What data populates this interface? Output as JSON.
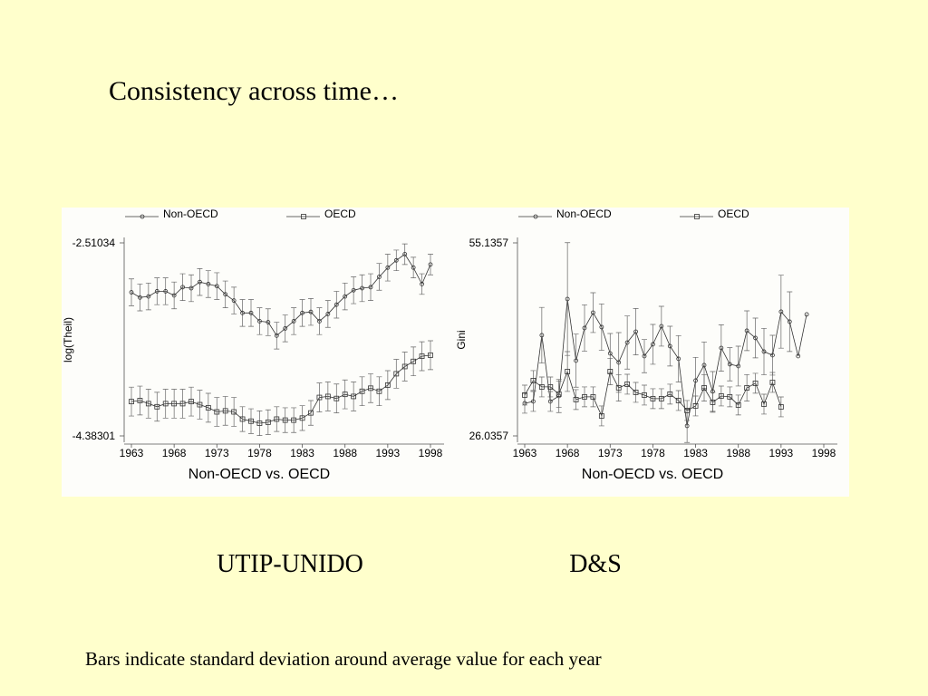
{
  "slide": {
    "title": "Consistency across time…",
    "labels": [
      "UTIP-UNIDO",
      "D&S"
    ],
    "footnote": "Bars indicate standard deviation around average value for each year"
  },
  "chart_data": [
    {
      "type": "line",
      "ylabel": "log(Theil)",
      "xlabel": "Non-OECD vs. OECD",
      "x": [
        1963,
        1964,
        1965,
        1966,
        1967,
        1968,
        1969,
        1970,
        1971,
        1972,
        1973,
        1974,
        1975,
        1976,
        1977,
        1978,
        1979,
        1980,
        1981,
        1982,
        1983,
        1984,
        1985,
        1986,
        1987,
        1988,
        1989,
        1990,
        1991,
        1992,
        1993,
        1994,
        1995,
        1996,
        1997,
        1998
      ],
      "xlim": [
        1963,
        1998
      ],
      "xticks": [
        1963,
        1968,
        1973,
        1978,
        1983,
        1988,
        1993,
        1998
      ],
      "ylim": [
        -4.38301,
        -2.51034
      ],
      "yticks": [
        -4.38301,
        -2.51034
      ],
      "series": [
        {
          "name": "Non-OECD",
          "marker": "circle",
          "color": "#333333",
          "values": [
            -2.99,
            -3.04,
            -3.03,
            -2.98,
            -2.98,
            -3.02,
            -2.94,
            -2.95,
            -2.89,
            -2.91,
            -2.93,
            -3.01,
            -3.07,
            -3.19,
            -3.19,
            -3.27,
            -3.28,
            -3.41,
            -3.34,
            -3.27,
            -3.19,
            -3.18,
            -3.27,
            -3.2,
            -3.11,
            -3.03,
            -2.97,
            -2.95,
            -2.94,
            -2.84,
            -2.75,
            -2.68,
            -2.62,
            -2.75,
            -2.91,
            -2.72
          ],
          "errors": [
            0.13,
            0.13,
            0.13,
            0.13,
            0.13,
            0.13,
            0.13,
            0.13,
            0.13,
            0.13,
            0.13,
            0.13,
            0.13,
            0.13,
            0.13,
            0.13,
            0.13,
            0.13,
            0.13,
            0.13,
            0.13,
            0.13,
            0.13,
            0.13,
            0.13,
            0.13,
            0.13,
            0.13,
            0.13,
            0.13,
            0.13,
            0.1,
            0.1,
            0.1,
            0.1,
            0.1
          ]
        },
        {
          "name": "OECD",
          "marker": "square",
          "color": "#333333",
          "values": [
            -4.05,
            -4.04,
            -4.07,
            -4.1,
            -4.07,
            -4.07,
            -4.07,
            -4.05,
            -4.08,
            -4.11,
            -4.15,
            -4.14,
            -4.15,
            -4.22,
            -4.24,
            -4.26,
            -4.25,
            -4.22,
            -4.23,
            -4.23,
            -4.21,
            -4.16,
            -4.01,
            -4,
            -4.02,
            -3.98,
            -4,
            -3.95,
            -3.92,
            -3.95,
            -3.89,
            -3.78,
            -3.71,
            -3.66,
            -3.61,
            -3.6
          ],
          "errors": [
            0.14,
            0.14,
            0.14,
            0.14,
            0.14,
            0.14,
            0.14,
            0.14,
            0.14,
            0.14,
            0.14,
            0.14,
            0.14,
            0.12,
            0.12,
            0.12,
            0.12,
            0.12,
            0.12,
            0.12,
            0.12,
            0.12,
            0.14,
            0.14,
            0.14,
            0.14,
            0.14,
            0.14,
            0.14,
            0.14,
            0.14,
            0.14,
            0.14,
            0.14,
            0.14,
            0.14
          ]
        }
      ]
    },
    {
      "type": "line",
      "ylabel": "Gini",
      "xlabel": "Non-OECD vs. OECD",
      "x": [
        1963,
        1964,
        1965,
        1966,
        1967,
        1968,
        1969,
        1970,
        1971,
        1972,
        1973,
        1974,
        1975,
        1976,
        1977,
        1978,
        1979,
        1980,
        1981,
        1982,
        1983,
        1984,
        1985,
        1986,
        1987,
        1988,
        1989,
        1990,
        1991,
        1992,
        1993,
        1994,
        1995,
        1996
      ],
      "xlim": [
        1963,
        1998
      ],
      "xticks": [
        1963,
        1968,
        1973,
        1978,
        1983,
        1988,
        1993,
        1998
      ],
      "ylim": [
        26.0357,
        55.1357
      ],
      "yticks": [
        26.0357,
        55.1357
      ],
      "series": [
        {
          "name": "Non-OECD",
          "marker": "circle",
          "color": "#333333",
          "values": [
            30.96,
            31.23,
            41.21,
            31.23,
            32.05,
            46.67,
            37.38,
            42.3,
            44.62,
            42.44,
            38.47,
            37.11,
            40.11,
            41.75,
            38.06,
            39.84,
            42.57,
            39.57,
            37.66,
            27.55,
            34.38,
            36.7,
            32.74,
            39.29,
            36.84,
            36.56,
            41.89,
            40.8,
            38.75,
            38.2,
            44.76,
            43.26,
            38.06,
            44.35
          ],
          "errors": [
            1.5,
            1.5,
            4.2,
            1.5,
            2.5,
            8.5,
            4,
            3.5,
            3,
            3.5,
            3,
            4.5,
            4,
            3.5,
            2.5,
            3,
            3,
            3,
            3.5,
            2.5,
            3.5,
            3.5,
            3,
            3.5,
            2.5,
            3,
            3,
            3,
            3.5,
            3,
            5.5,
            4.5,
            null,
            null
          ]
        },
        {
          "name": "OECD",
          "marker": "square",
          "color": "#333333",
          "values": [
            32.19,
            34.38,
            33.42,
            33.42,
            32.33,
            35.74,
            31.51,
            31.92,
            31.92,
            29.05,
            35.74,
            33.28,
            33.83,
            32.6,
            32.19,
            31.65,
            31.65,
            32.33,
            31.37,
            29.87,
            30.55,
            33.28,
            31.1,
            32.05,
            31.92,
            30.69,
            33.28,
            33.97,
            30.82,
            34.1,
            30.41,
            null,
            null,
            null
          ],
          "errors": [
            1.5,
            1.5,
            1.5,
            1.5,
            2,
            3,
            1.5,
            1.5,
            1.5,
            1.5,
            2,
            2,
            1.5,
            1.5,
            1.5,
            1.5,
            1.5,
            1.5,
            1.5,
            1.5,
            1.5,
            2,
            1.5,
            1.5,
            1.5,
            1.5,
            2,
            1.5,
            1.5,
            1.5,
            1.5,
            null,
            null,
            null
          ]
        }
      ]
    }
  ]
}
